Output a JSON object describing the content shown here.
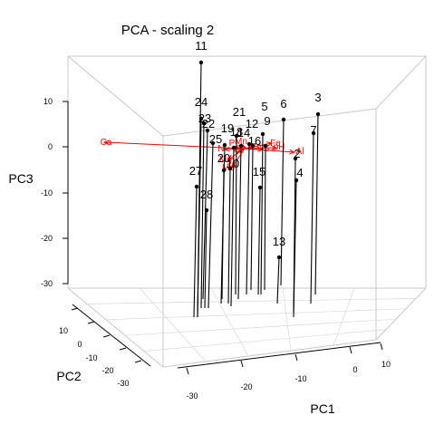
{
  "chart_data": {
    "type": "scatter3d",
    "title": "PCA - scaling 2",
    "xlabel": "PC1",
    "ylabel": "PC2",
    "zlabel": "PC3",
    "x_ticks": [
      "-30",
      "-20",
      "-10",
      "0",
      "10"
    ],
    "y_ticks": [
      "10",
      "0",
      "-10",
      "-20",
      "-30"
    ],
    "z_ticks": [
      "10",
      "0",
      "-10",
      "-20",
      "-30"
    ],
    "xlim": [
      -30,
      15
    ],
    "ylim": [
      -30,
      15
    ],
    "zlim": [
      -30,
      20
    ],
    "grid": true,
    "points": [
      {
        "label": "11",
        "pc3": 18.5
      },
      {
        "label": "24",
        "pc3": 6
      },
      {
        "label": "23",
        "pc3": 5
      },
      {
        "label": "22",
        "pc3": 4
      },
      {
        "label": "25",
        "pc3": 2
      },
      {
        "label": "19",
        "pc3": 2.5
      },
      {
        "label": "18",
        "pc3": 1.5
      },
      {
        "label": "21",
        "pc3": 8
      },
      {
        "label": "14",
        "pc3": 1
      },
      {
        "label": "12",
        "pc3": 2
      },
      {
        "label": "16",
        "pc3": 0.5
      },
      {
        "label": "5",
        "pc3": 7
      },
      {
        "label": "9",
        "pc3": 1.5
      },
      {
        "label": "6",
        "pc3": 7
      },
      {
        "label": "3",
        "pc3": 7.5
      },
      {
        "label": "7",
        "pc3": 5
      },
      {
        "label": "2",
        "pc3": 0
      },
      {
        "label": "4",
        "pc3": -9
      },
      {
        "label": "15",
        "pc3": -8
      },
      {
        "label": "27",
        "pc3": -9
      },
      {
        "label": "28",
        "pc3": -14
      },
      {
        "label": "13",
        "pc3": -24
      },
      {
        "label": "20",
        "pc3": -1
      },
      {
        "label": "10",
        "pc3": -2
      }
    ],
    "variables": [
      "Ca",
      "Fe",
      "Al",
      "N",
      "P",
      "K",
      "Mg",
      "Mn",
      "Zn",
      "S",
      "Mo",
      "pH"
    ],
    "colors": {
      "points": "#000000",
      "variables": "#ff0000",
      "box": "#c8c8c8"
    }
  }
}
